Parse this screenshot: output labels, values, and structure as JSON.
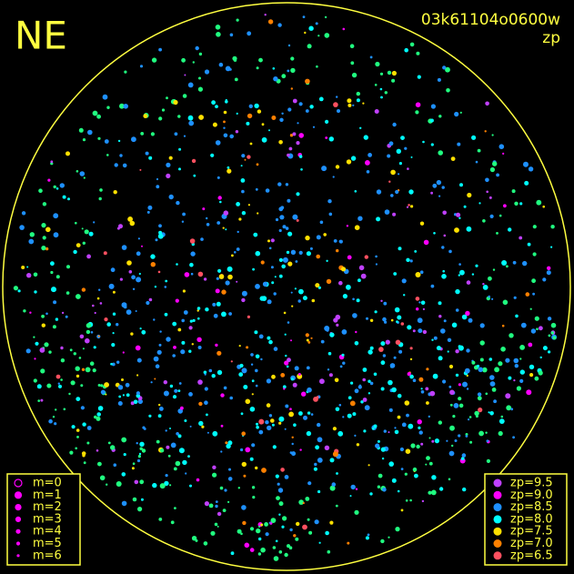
{
  "corner_label": "NE",
  "frame_id": "03k61104o0600w",
  "mode": "zp",
  "magnitude_legend": [
    "m=0",
    "m=1",
    "m=2",
    "m=3",
    "m=4",
    "m=5",
    "m=6"
  ],
  "zp_legend": [
    {
      "label": "zp=9.5",
      "color": "#c040ff"
    },
    {
      "label": "zp=9.0",
      "color": "#ff00ff"
    },
    {
      "label": "zp=8.5",
      "color": "#1e90ff"
    },
    {
      "label": "zp=8.0",
      "color": "#00ffff"
    },
    {
      "label": "zp=7.5",
      "color": "#ffe000"
    },
    {
      "label": "zp=7.0",
      "color": "#ff8000"
    },
    {
      "label": "zp=6.5",
      "color": "#ff5060"
    }
  ]
}
